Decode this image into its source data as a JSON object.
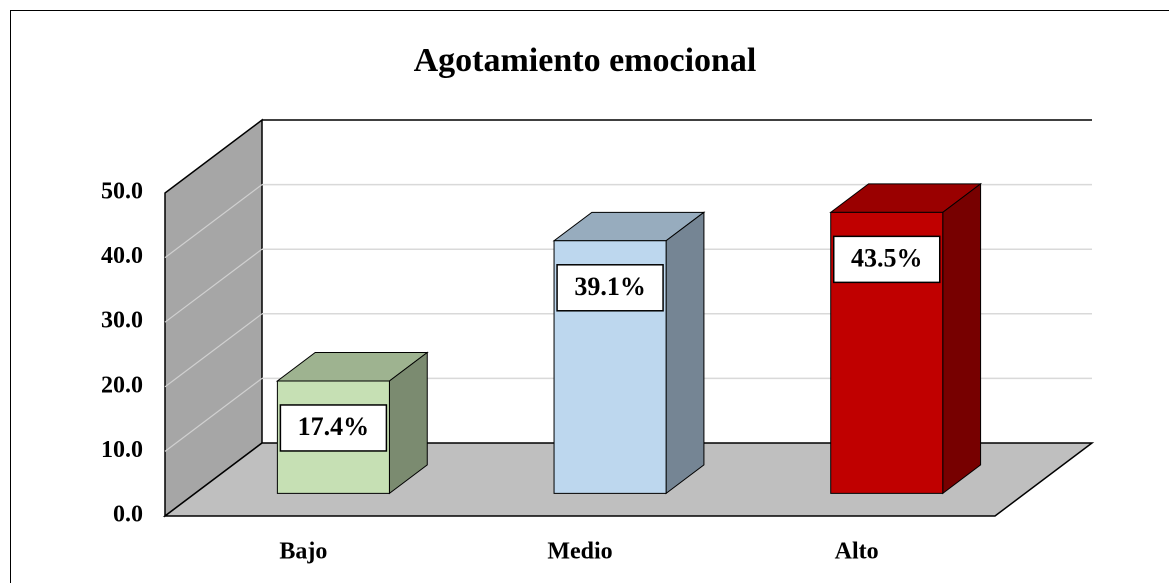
{
  "chart_data": {
    "type": "bar3d",
    "title": "Agotamiento emocional",
    "categories": [
      "Bajo",
      "Medio",
      "Alto"
    ],
    "values": [
      17.4,
      39.1,
      43.5
    ],
    "value_labels": [
      "17.4%",
      "39.1%",
      "43.5%"
    ],
    "colors": [
      "#c6e0b4",
      "#bdd7ee",
      "#c00000"
    ],
    "ylim": [
      0,
      50
    ],
    "yticks": [
      {
        "value": 0,
        "label": "0.0"
      },
      {
        "value": 10,
        "label": "10.0"
      },
      {
        "value": 20,
        "label": "20.0"
      },
      {
        "value": 30,
        "label": "30.0"
      },
      {
        "value": 40,
        "label": "40.0"
      },
      {
        "value": 50,
        "label": "50.0"
      }
    ],
    "grid": true
  }
}
